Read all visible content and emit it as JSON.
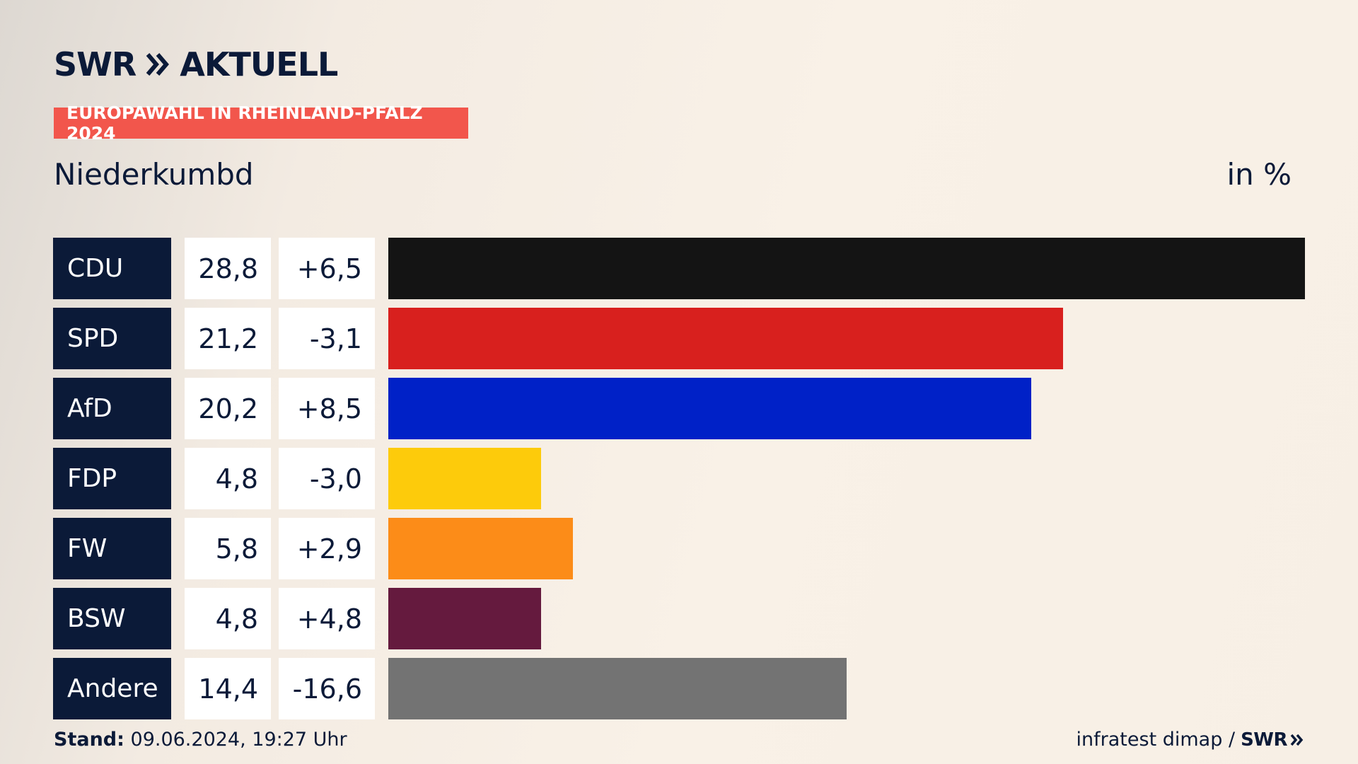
{
  "header": {
    "logo_swr": "SWR",
    "logo_aktuell": "AKTUELL",
    "banner": "EUROPAWAHL IN RHEINLAND-PFALZ 2024",
    "region": "Niederkumbd",
    "unit": "in %"
  },
  "footer": {
    "stand_label": "Stand:",
    "stand_value": "09.06.2024, 19:27 Uhr",
    "source": "infratest dimap /",
    "source_logo": "SWR"
  },
  "colors": {
    "navy": "#0b1a38",
    "banner": "#f2564c"
  },
  "chart_data": {
    "type": "bar",
    "orientation": "horizontal",
    "categories": [
      "CDU",
      "SPD",
      "AfD",
      "FDP",
      "FW",
      "BSW",
      "Andere"
    ],
    "values": [
      28.8,
      21.2,
      20.2,
      4.8,
      5.8,
      4.8,
      14.4
    ],
    "value_labels": [
      "28,8",
      "21,2",
      "20,2",
      "4,8",
      "5,8",
      "4,8",
      "14,4"
    ],
    "diff_labels": [
      "+6,5",
      "-3,1",
      "+8,5",
      "-3,0",
      "+2,9",
      "+4,8",
      "-16,6"
    ],
    "diffs": [
      6.5,
      -3.1,
      8.5,
      -3.0,
      2.9,
      4.8,
      -16.6
    ],
    "colors": [
      "#141414",
      "#d8201e",
      "#0021c7",
      "#fdcb0b",
      "#fc8c18",
      "#651a3e",
      "#737373"
    ],
    "xlim": [
      0,
      28.8
    ]
  }
}
